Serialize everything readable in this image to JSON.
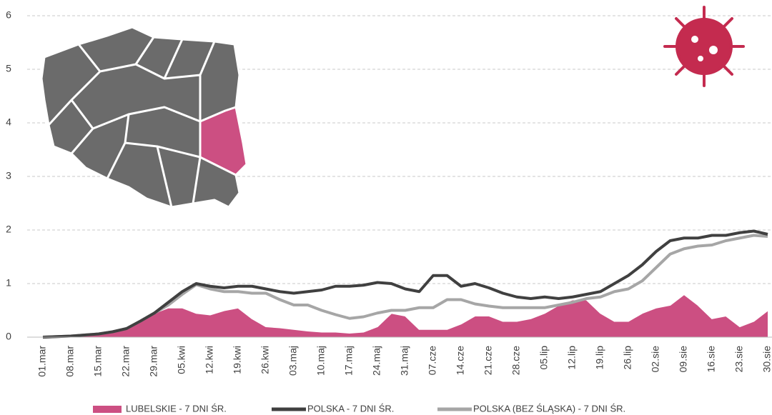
{
  "chart_data": {
    "type": "line",
    "categories": [
      "01.mar",
      null,
      "08.mar",
      null,
      "15.mar",
      null,
      "22.mar",
      null,
      "29.mar",
      null,
      "05.kwi",
      null,
      "12.kwi",
      null,
      "19.kwi",
      null,
      "26.kwi",
      null,
      "03.maj",
      null,
      "10.maj",
      null,
      "17.maj",
      null,
      "24.maj",
      null,
      "31.maj",
      null,
      "07.cze",
      null,
      "14.cze",
      null,
      "21.cze",
      null,
      "28.cze",
      null,
      "05.lip",
      null,
      "12.lip",
      null,
      "19.lip",
      null,
      "26.lip",
      null,
      "02.sie",
      null,
      "09.sie",
      null,
      "16.sie",
      null,
      "23.sie",
      null,
      "30.sie"
    ],
    "series": [
      {
        "name": "LUBELSKIE - 7 DNI ŚR.",
        "color": "#cc4f82",
        "kind": "area",
        "values": [
          0,
          0.02,
          0.03,
          0.05,
          0.05,
          0.1,
          0.15,
          0.3,
          0.45,
          0.55,
          0.55,
          0.45,
          0.42,
          0.5,
          0.55,
          0.35,
          0.2,
          0.18,
          0.15,
          0.12,
          0.1,
          0.1,
          0.08,
          0.1,
          0.2,
          0.45,
          0.4,
          0.15,
          0.15,
          0.15,
          0.25,
          0.4,
          0.4,
          0.3,
          0.3,
          0.35,
          0.45,
          0.6,
          0.7,
          0.7,
          0.45,
          0.3,
          0.3,
          0.45,
          0.55,
          0.6,
          0.8,
          0.6,
          0.35,
          0.4,
          0.2,
          0.3,
          0.5
        ]
      },
      {
        "name": "POLSKA - 7 DNI ŚR.",
        "color": "#404040",
        "kind": "line",
        "values": [
          0,
          0.01,
          0.02,
          0.04,
          0.06,
          0.1,
          0.16,
          0.3,
          0.45,
          0.65,
          0.85,
          1.0,
          0.95,
          0.92,
          0.95,
          0.95,
          0.9,
          0.85,
          0.82,
          0.85,
          0.88,
          0.95,
          0.95,
          0.97,
          1.02,
          1.0,
          0.9,
          0.85,
          1.15,
          1.15,
          0.95,
          1.0,
          0.92,
          0.82,
          0.75,
          0.72,
          0.75,
          0.72,
          0.75,
          0.8,
          0.85,
          1.0,
          1.15,
          1.35,
          1.6,
          1.8,
          1.85,
          1.85,
          1.9,
          1.9,
          1.95,
          1.98,
          1.92
        ]
      },
      {
        "name": "POLSKA (BEZ ŚLĄSKA) - 7 DNI ŚR.",
        "color": "#a6a6a6",
        "kind": "line",
        "values": [
          0,
          0.01,
          0.02,
          0.04,
          0.06,
          0.1,
          0.16,
          0.3,
          0.45,
          0.6,
          0.8,
          0.98,
          0.9,
          0.85,
          0.85,
          0.82,
          0.82,
          0.7,
          0.6,
          0.6,
          0.5,
          0.42,
          0.35,
          0.38,
          0.45,
          0.5,
          0.5,
          0.55,
          0.55,
          0.7,
          0.7,
          0.62,
          0.58,
          0.55,
          0.55,
          0.55,
          0.55,
          0.6,
          0.65,
          0.72,
          0.75,
          0.85,
          0.9,
          1.05,
          1.3,
          1.55,
          1.65,
          1.7,
          1.72,
          1.8,
          1.85,
          1.9,
          1.88
        ]
      }
    ],
    "ylim": [
      0,
      6
    ],
    "yticks": [
      0,
      1,
      2,
      3,
      4,
      5,
      6
    ],
    "grid": true
  }
}
